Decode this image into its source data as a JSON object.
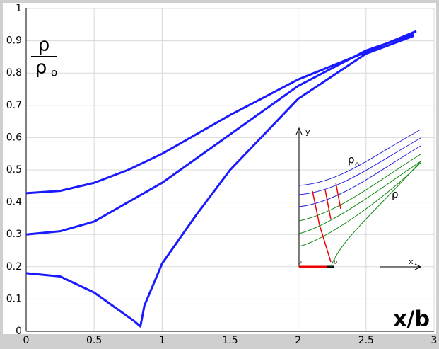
{
  "chart_data": {
    "type": "line",
    "y_label": {
      "numerator": "ρ",
      "denominator": "ρ",
      "subscript": "o"
    },
    "x_label": "x/b",
    "series": [
      {
        "color": "#1a1aff",
        "x": [
          0,
          0.25,
          0.5,
          0.75,
          1,
          1.25,
          1.5,
          2,
          2.5,
          2.87
        ],
        "values": [
          0.428,
          0.435,
          0.46,
          0.5,
          0.55,
          0.61,
          0.67,
          0.78,
          0.865,
          0.93
        ]
      },
      {
        "color": "#1a1aff",
        "x": [
          0,
          0.25,
          0.5,
          0.75,
          1,
          1.25,
          1.5,
          2,
          2.5,
          2.85
        ],
        "values": [
          0.3,
          0.31,
          0.34,
          0.4,
          0.46,
          0.535,
          0.61,
          0.76,
          0.87,
          0.92
        ]
      },
      {
        "color": "#1a1aff",
        "x": [
          0,
          0.25,
          0.5,
          0.7,
          0.8,
          0.84,
          0.87,
          1,
          1.25,
          1.5,
          2,
          2.5,
          2.85
        ],
        "values": [
          0.18,
          0.17,
          0.12,
          0.06,
          0.03,
          0.015,
          0.08,
          0.21,
          0.36,
          0.5,
          0.72,
          0.86,
          0.915
        ]
      }
    ],
    "xlim": [
      0,
      3
    ],
    "xticks": [
      0,
      0.5,
      1,
      1.5,
      2,
      2.5,
      3
    ],
    "ylim": [
      0,
      1
    ],
    "yticks": [
      0,
      0.1,
      0.2,
      0.3,
      0.4,
      0.5,
      0.6,
      0.7,
      0.8,
      0.9,
      1
    ],
    "grid": true,
    "inset": {
      "y_axis": "y",
      "x_axis": "x",
      "upper_label": "ρ",
      "upper_subscript": "o",
      "lower_label": "ρ",
      "origin": "o",
      "end": "b"
    }
  }
}
